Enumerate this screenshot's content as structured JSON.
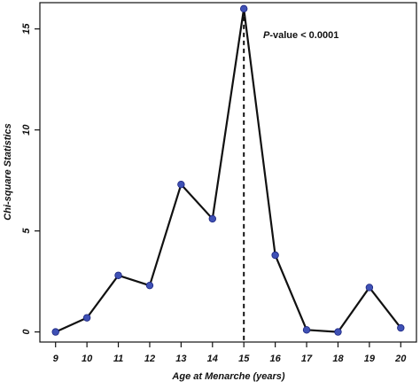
{
  "chart_data": {
    "type": "line",
    "title": "",
    "xlabel": "Age at Menarche (years)",
    "ylabel": "Chi-square Statistics",
    "x": [
      9,
      10,
      11,
      12,
      13,
      14,
      15,
      16,
      17,
      18,
      19,
      20
    ],
    "values": [
      0.0,
      0.7,
      2.8,
      2.3,
      7.3,
      5.6,
      16.0,
      3.8,
      0.1,
      0.0,
      2.2,
      0.2
    ],
    "x_ticks": [
      "9",
      "10",
      "11",
      "12",
      "13",
      "14",
      "15",
      "16",
      "17",
      "18",
      "19",
      "20"
    ],
    "y_ticks": [
      "0",
      "5",
      "10",
      "15"
    ],
    "xlim": [
      8.5,
      20.5
    ],
    "ylim": [
      -0.5,
      16.3
    ],
    "grid": false,
    "marker_color": "#3f51b5",
    "line_color": "#111111",
    "vline": {
      "x": 15,
      "style": "dashed"
    },
    "annotation": {
      "italic": "P",
      "rest": "-value < 0.0001"
    }
  }
}
